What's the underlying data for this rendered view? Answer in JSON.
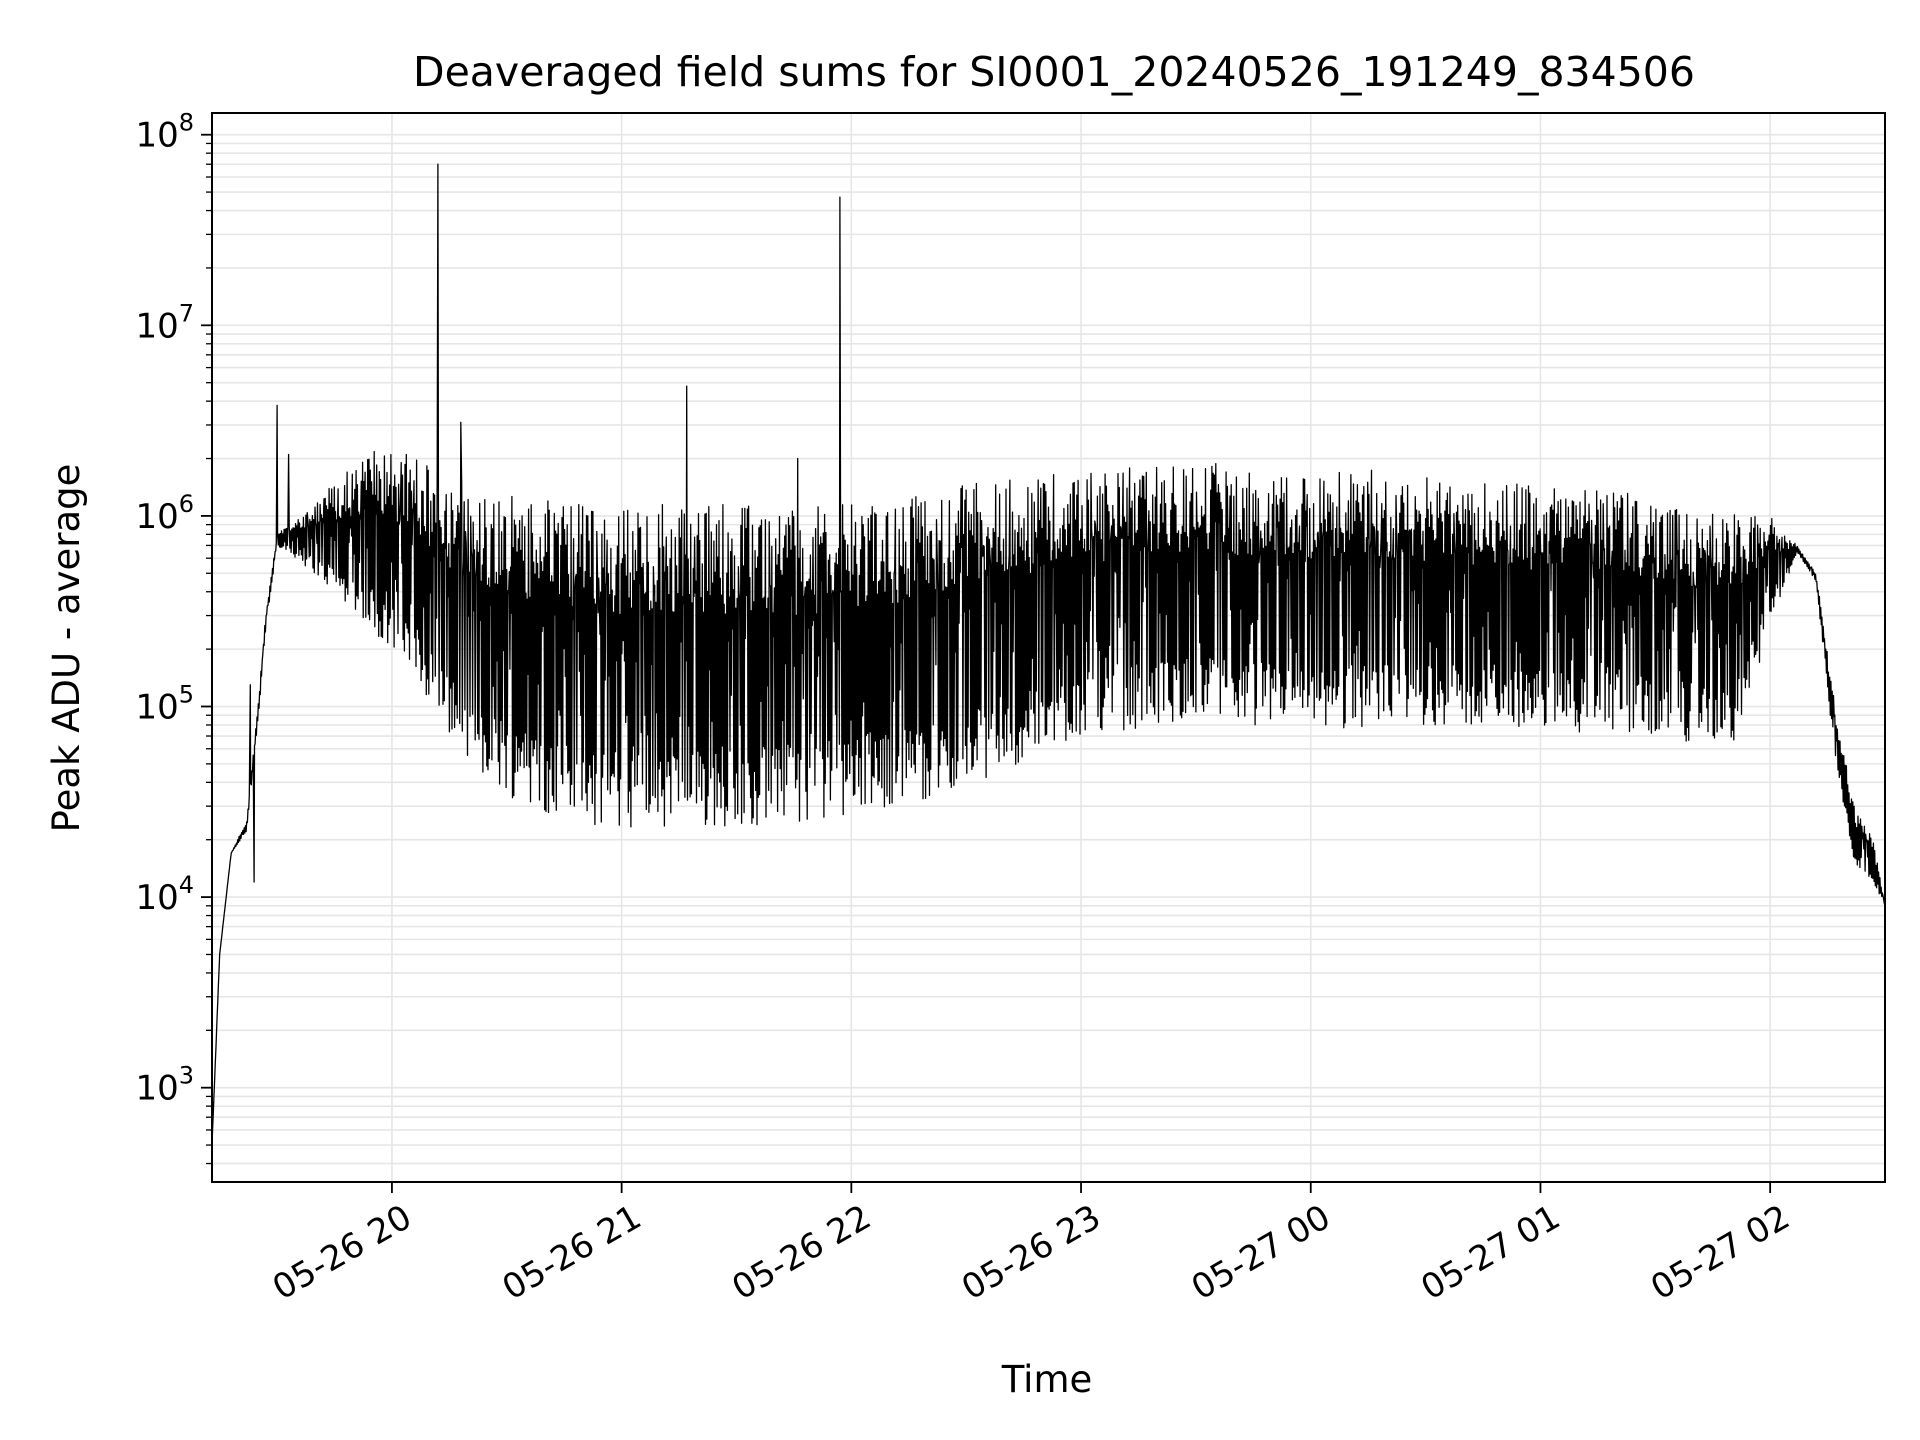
{
  "chart_data": {
    "type": "line",
    "title": "Deaveraged field sums for SI0001_20240526_191249_834506",
    "xlabel": "Time",
    "ylabel": "Peak ADU - average",
    "yscale": "log",
    "xlim": [
      "2024-05-26 19:13",
      "2024-05-27 02:30"
    ],
    "ylim": [
      320,
      130000000
    ],
    "grid": true,
    "line_color": "#000000",
    "grid_color": "#e6e6e6",
    "x_ticks": [
      {
        "label": "05-26 20",
        "value": "2024-05-26 20:00"
      },
      {
        "label": "05-26 21",
        "value": "2024-05-26 21:00"
      },
      {
        "label": "05-26 22",
        "value": "2024-05-26 22:00"
      },
      {
        "label": "05-26 23",
        "value": "2024-05-26 23:00"
      },
      {
        "label": "05-27 00",
        "value": "2024-05-27 00:00"
      },
      {
        "label": "05-27 01",
        "value": "2024-05-27 01:00"
      },
      {
        "label": "05-27 02",
        "value": "2024-05-27 02:00"
      }
    ],
    "y_ticks": [
      {
        "base": "10",
        "exp": "3",
        "value": 1000
      },
      {
        "base": "10",
        "exp": "4",
        "value": 10000
      },
      {
        "base": "10",
        "exp": "5",
        "value": 100000
      },
      {
        "base": "10",
        "exp": "6",
        "value": 1000000
      },
      {
        "base": "10",
        "exp": "7",
        "value": 10000000
      },
      {
        "base": "10",
        "exp": "8",
        "value": 100000000
      }
    ],
    "series": [
      {
        "peak_envelope": [
          [
            "2024-05-26 19:13",
            500
          ],
          [
            "2024-05-26 19:15",
            5000
          ],
          [
            "2024-05-26 19:18",
            17000
          ],
          [
            "2024-05-26 19:22",
            25000
          ],
          [
            "2024-05-26 19:25",
            100000
          ],
          [
            "2024-05-26 19:27",
            300000
          ],
          [
            "2024-05-26 19:30",
            800000
          ],
          [
            "2024-05-26 19:35",
            1000000
          ],
          [
            "2024-05-26 19:45",
            1500000
          ],
          [
            "2024-05-26 19:55",
            2200000
          ],
          [
            "2024-05-26 20:05",
            2100000
          ],
          [
            "2024-05-26 20:20",
            1400000
          ],
          [
            "2024-05-26 20:40",
            1200000
          ],
          [
            "2024-05-26 21:00",
            1150000
          ],
          [
            "2024-05-26 21:30",
            1150000
          ],
          [
            "2024-05-26 22:00",
            1150000
          ],
          [
            "2024-05-26 22:30",
            1500000
          ],
          [
            "2024-05-26 23:00",
            1700000
          ],
          [
            "2024-05-26 23:30",
            1950000
          ],
          [
            "2024-05-26 23:50",
            1750000
          ],
          [
            "2024-05-27 00:15",
            1750000
          ],
          [
            "2024-05-27 00:45",
            1500000
          ],
          [
            "2024-05-27 01:15",
            1400000
          ],
          [
            "2024-05-27 01:45",
            1100000
          ],
          [
            "2024-05-27 02:00",
            1000000
          ],
          [
            "2024-05-27 02:07",
            700000
          ],
          [
            "2024-05-27 02:12",
            500000
          ],
          [
            "2024-05-27 02:17",
            100000
          ],
          [
            "2024-05-27 02:22",
            30000
          ],
          [
            "2024-05-27 02:27",
            20000
          ],
          [
            "2024-05-27 02:30",
            9000
          ]
        ],
        "trough_envelope": [
          [
            "2024-05-26 19:13",
            500
          ],
          [
            "2024-05-26 19:15",
            5000
          ],
          [
            "2024-05-26 19:18",
            17000
          ],
          [
            "2024-05-26 19:22",
            22000
          ],
          [
            "2024-05-26 19:25",
            80000
          ],
          [
            "2024-05-26 19:27",
            250000
          ],
          [
            "2024-05-26 19:30",
            700000
          ],
          [
            "2024-05-26 19:35",
            600000
          ],
          [
            "2024-05-26 19:45",
            400000
          ],
          [
            "2024-05-26 19:55",
            250000
          ],
          [
            "2024-05-26 20:05",
            150000
          ],
          [
            "2024-05-26 20:15",
            70000
          ],
          [
            "2024-05-26 20:25",
            40000
          ],
          [
            "2024-05-26 20:35",
            30000
          ],
          [
            "2024-05-26 20:50",
            24000
          ],
          [
            "2024-05-26 21:10",
            22000
          ],
          [
            "2024-05-26 21:40",
            24000
          ],
          [
            "2024-05-26 22:00",
            27000
          ],
          [
            "2024-05-26 22:20",
            33000
          ],
          [
            "2024-05-26 22:40",
            45000
          ],
          [
            "2024-05-26 23:00",
            70000
          ],
          [
            "2024-05-26 23:30",
            85000
          ],
          [
            "2024-05-27 00:00",
            75000
          ],
          [
            "2024-05-27 00:30",
            80000
          ],
          [
            "2024-05-27 01:00",
            75000
          ],
          [
            "2024-05-27 01:30",
            70000
          ],
          [
            "2024-05-27 01:50",
            60000
          ],
          [
            "2024-05-27 02:00",
            250000
          ],
          [
            "2024-05-27 02:07",
            650000
          ],
          [
            "2024-05-27 02:12",
            450000
          ],
          [
            "2024-05-27 02:17",
            50000
          ],
          [
            "2024-05-27 02:22",
            15000
          ],
          [
            "2024-05-27 02:27",
            12000
          ],
          [
            "2024-05-27 02:30",
            9000
          ]
        ],
        "spikes": [
          [
            "2024-05-26 19:30",
            3800000
          ],
          [
            "2024-05-26 19:33",
            2100000
          ],
          [
            "2024-05-26 20:12",
            70000000
          ],
          [
            "2024-05-26 20:18",
            3100000
          ],
          [
            "2024-05-26 21:17",
            4800000
          ],
          [
            "2024-05-26 21:46",
            2000000
          ],
          [
            "2024-05-26 21:57",
            47000000
          ],
          [
            "2024-05-26 19:23",
            130000
          ],
          [
            "2024-05-26 19:24",
            12000
          ]
        ]
      }
    ]
  }
}
